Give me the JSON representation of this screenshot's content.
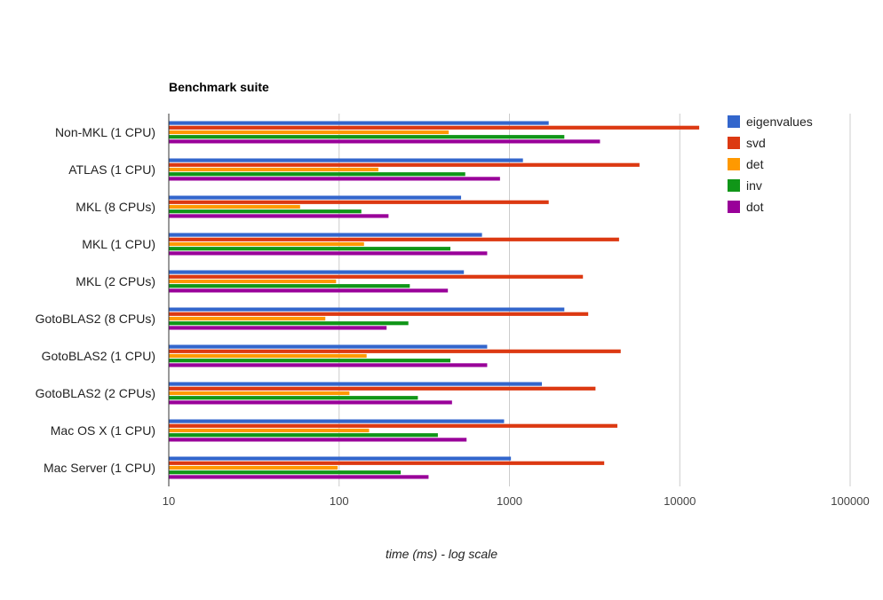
{
  "chart_data": {
    "type": "bar",
    "orientation": "horizontal",
    "title": "Benchmark suite",
    "xlabel": "time (ms) - log scale",
    "ylabel": "",
    "x_scale": "log",
    "xlim": [
      10,
      100000
    ],
    "x_ticks": [
      "10",
      "100",
      "1000",
      "10000",
      "100000"
    ],
    "grid": true,
    "legend_position": "right",
    "categories": [
      "Non-MKL (1 CPU)",
      "ATLAS (1 CPU)",
      "MKL (8 CPUs)",
      "MKL (1 CPU)",
      "MKL (2 CPUs)",
      "GotoBLAS2 (8 CPUs)",
      "GotoBLAS2 (1 CPU)",
      "GotoBLAS2 (2 CPUs)",
      "Mac OS X (1 CPU)",
      "Mac Server (1 CPU)"
    ],
    "series": [
      {
        "name": "eigenvalues",
        "color": "#3366cc",
        "values": [
          1700,
          1200,
          520,
          690,
          540,
          2100,
          740,
          1550,
          930,
          1020
        ]
      },
      {
        "name": "svd",
        "color": "#dc3912",
        "values": [
          13000,
          5800,
          1700,
          4400,
          2700,
          2900,
          4500,
          3200,
          4300,
          3600
        ]
      },
      {
        "name": "det",
        "color": "#ff9900",
        "values": [
          440,
          170,
          59,
          140,
          96,
          83,
          145,
          115,
          150,
          98
        ]
      },
      {
        "name": "inv",
        "color": "#109618",
        "values": [
          2100,
          550,
          135,
          450,
          260,
          255,
          450,
          290,
          380,
          230
        ]
      },
      {
        "name": "dot",
        "color": "#990099",
        "values": [
          3400,
          880,
          195,
          740,
          435,
          190,
          740,
          460,
          560,
          335
        ]
      }
    ]
  }
}
